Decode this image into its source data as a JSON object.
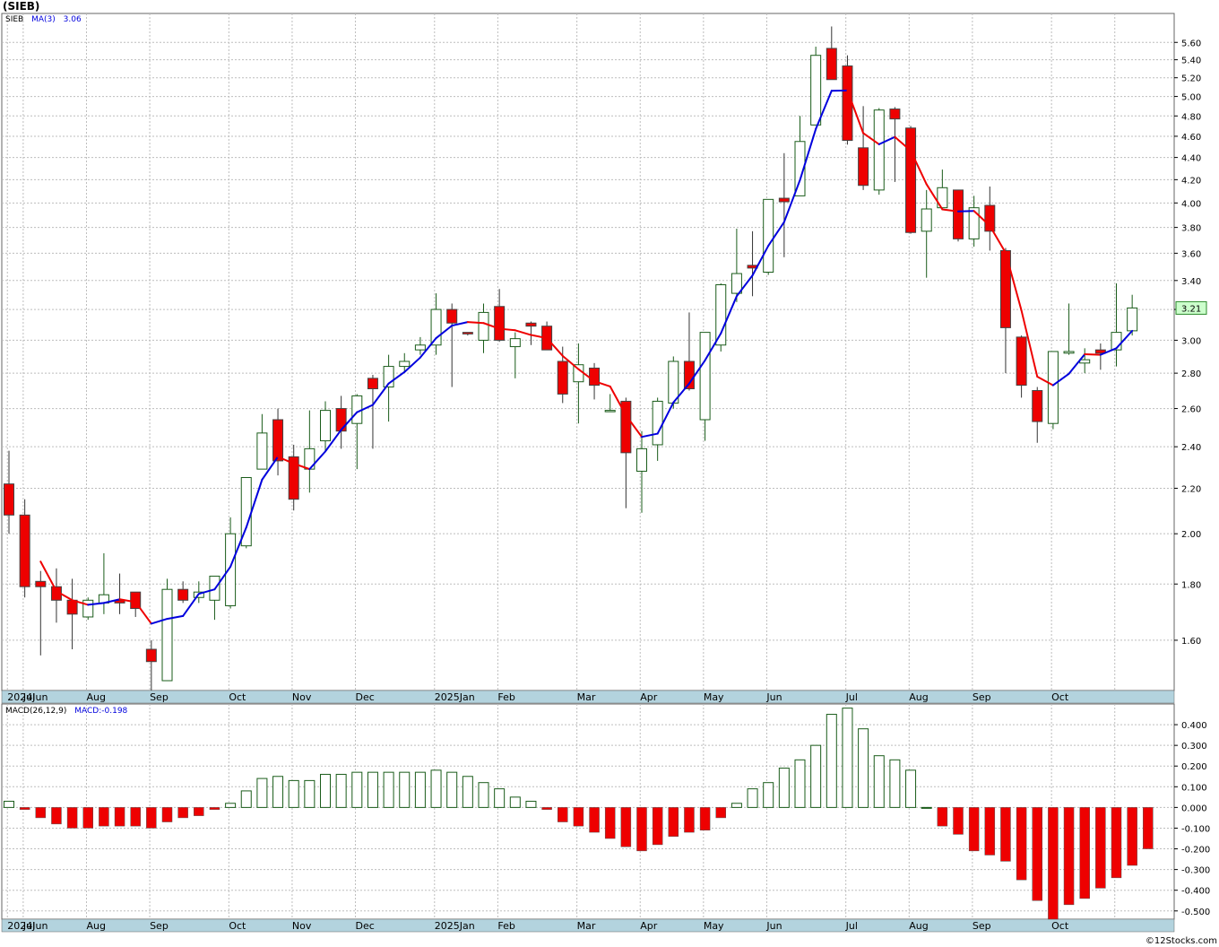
{
  "ticker_title": "(SIEB)",
  "watermark": "©12Stocks.com",
  "colors": {
    "up_candle_fill": "#ffffff",
    "up_candle_stroke": "#1a5c1a",
    "down_candle_fill": "#ee0000",
    "ma_up": "#0000dd",
    "ma_down": "#ee0000",
    "macd_pos_stroke": "#1a5c1a",
    "macd_neg_fill": "#ee0000",
    "grid": "#bdbdbd",
    "axis_band": "#b3d3de",
    "price_tag": "#ccffcc"
  },
  "x_axis_labels": [
    "2024Jun",
    "Jul",
    "Aug",
    "Sep",
    "Oct",
    "Nov",
    "Dec",
    "2025Jan",
    "Feb",
    "Mar",
    "Apr",
    "May",
    "Jun",
    "Jul",
    "Aug",
    "Sep",
    "Oct"
  ],
  "chart_data": [
    {
      "type": "candlestick",
      "title": "(SIEB)",
      "scale": "log",
      "legend": [
        {
          "name": "SIEB"
        },
        {
          "name": "MA(3)",
          "value": "3.06"
        }
      ],
      "y_ticks": [
        "1.60",
        "1.80",
        "2.00",
        "2.20",
        "2.40",
        "2.60",
        "2.80",
        "3.00",
        "3.20",
        "3.40",
        "3.60",
        "3.80",
        "4.00",
        "4.20",
        "4.40",
        "4.60",
        "4.80",
        "5.00",
        "5.20",
        "5.40",
        "5.60"
      ],
      "ylim": [
        1.44,
        5.95
      ],
      "last_price": "3.21",
      "weeks": [
        {
          "d": "2024-05-31",
          "o": 2.22,
          "h": 2.38,
          "l": 2.0,
          "c": 2.08
        },
        {
          "d": "2024-06-07",
          "o": 2.08,
          "h": 2.15,
          "l": 1.75,
          "c": 1.79
        },
        {
          "d": "2024-06-14",
          "o": 1.81,
          "h": 1.85,
          "l": 1.55,
          "c": 1.79
        },
        {
          "d": "2024-06-21",
          "o": 1.79,
          "h": 1.86,
          "l": 1.66,
          "c": 1.74
        },
        {
          "d": "2024-06-28",
          "o": 1.74,
          "h": 1.82,
          "l": 1.57,
          "c": 1.69
        },
        {
          "d": "2024-07-05",
          "o": 1.68,
          "h": 1.75,
          "l": 1.67,
          "c": 1.74
        },
        {
          "d": "2024-07-12",
          "o": 1.73,
          "h": 1.92,
          "l": 1.69,
          "c": 1.76
        },
        {
          "d": "2024-07-19",
          "o": 1.74,
          "h": 1.84,
          "l": 1.69,
          "c": 1.73
        },
        {
          "d": "2024-07-26",
          "o": 1.77,
          "h": 1.77,
          "l": 1.68,
          "c": 1.71
        },
        {
          "d": "2024-08-02",
          "o": 1.57,
          "h": 1.6,
          "l": 1.44,
          "c": 1.53
        },
        {
          "d": "2024-08-09",
          "o": 1.47,
          "h": 1.82,
          "l": 1.47,
          "c": 1.78
        },
        {
          "d": "2024-08-16",
          "o": 1.78,
          "h": 1.81,
          "l": 1.73,
          "c": 1.74
        },
        {
          "d": "2024-08-23",
          "o": 1.75,
          "h": 1.81,
          "l": 1.73,
          "c": 1.77
        },
        {
          "d": "2024-08-30",
          "o": 1.74,
          "h": 1.83,
          "l": 1.67,
          "c": 1.83
        },
        {
          "d": "2024-09-06",
          "o": 1.72,
          "h": 2.07,
          "l": 1.71,
          "c": 2.0
        },
        {
          "d": "2024-09-13",
          "o": 1.95,
          "h": 2.25,
          "l": 1.94,
          "c": 2.25
        },
        {
          "d": "2024-09-20",
          "o": 2.29,
          "h": 2.57,
          "l": 2.29,
          "c": 2.47
        },
        {
          "d": "2024-09-27",
          "o": 2.54,
          "h": 2.6,
          "l": 2.26,
          "c": 2.33
        },
        {
          "d": "2024-10-04",
          "o": 2.35,
          "h": 2.41,
          "l": 2.1,
          "c": 2.15
        },
        {
          "d": "2024-10-11",
          "o": 2.29,
          "h": 2.59,
          "l": 2.18,
          "c": 2.39
        },
        {
          "d": "2024-10-18",
          "o": 2.43,
          "h": 2.64,
          "l": 2.38,
          "c": 2.59
        },
        {
          "d": "2024-10-25",
          "o": 2.6,
          "h": 2.67,
          "l": 2.39,
          "c": 2.48
        },
        {
          "d": "2024-11-01",
          "o": 2.52,
          "h": 2.68,
          "l": 2.29,
          "c": 2.67
        },
        {
          "d": "2024-11-08",
          "o": 2.77,
          "h": 2.79,
          "l": 2.39,
          "c": 2.71
        },
        {
          "d": "2024-11-15",
          "o": 2.72,
          "h": 2.91,
          "l": 2.53,
          "c": 2.84
        },
        {
          "d": "2024-11-22",
          "o": 2.84,
          "h": 2.92,
          "l": 2.81,
          "c": 2.87
        },
        {
          "d": "2024-11-29",
          "o": 2.94,
          "h": 3.02,
          "l": 2.91,
          "c": 2.97
        },
        {
          "d": "2024-12-06",
          "o": 2.97,
          "h": 3.31,
          "l": 2.91,
          "c": 3.2
        },
        {
          "d": "2024-12-13",
          "o": 3.2,
          "h": 3.24,
          "l": 2.72,
          "c": 3.11
        },
        {
          "d": "2024-12-20",
          "o": 3.05,
          "h": 3.05,
          "l": 3.03,
          "c": 3.04
        },
        {
          "d": "2024-12-27",
          "o": 3.0,
          "h": 3.24,
          "l": 2.92,
          "c": 3.18
        },
        {
          "d": "2025-01-03",
          "o": 3.22,
          "h": 3.34,
          "l": 2.99,
          "c": 3.0
        },
        {
          "d": "2025-01-10",
          "o": 2.96,
          "h": 3.05,
          "l": 2.77,
          "c": 3.01
        },
        {
          "d": "2025-01-17",
          "o": 3.11,
          "h": 3.12,
          "l": 2.97,
          "c": 3.09
        },
        {
          "d": "2025-01-24",
          "o": 3.09,
          "h": 3.12,
          "l": 2.95,
          "c": 2.94
        },
        {
          "d": "2025-01-31",
          "o": 2.87,
          "h": 2.96,
          "l": 2.63,
          "c": 2.68
        },
        {
          "d": "2025-02-07",
          "o": 2.75,
          "h": 2.98,
          "l": 2.52,
          "c": 2.85
        },
        {
          "d": "2025-02-14",
          "o": 2.83,
          "h": 2.86,
          "l": 2.65,
          "c": 2.73
        },
        {
          "d": "2025-02-21",
          "o": 2.59,
          "h": 2.68,
          "l": 2.59,
          "c": 2.59
        },
        {
          "d": "2025-02-28",
          "o": 2.64,
          "h": 2.66,
          "l": 2.11,
          "c": 2.37
        },
        {
          "d": "2025-03-07",
          "o": 2.28,
          "h": 2.48,
          "l": 2.09,
          "c": 2.39
        },
        {
          "d": "2025-03-14",
          "o": 2.41,
          "h": 2.66,
          "l": 2.33,
          "c": 2.64
        },
        {
          "d": "2025-03-21",
          "o": 2.63,
          "h": 2.9,
          "l": 2.6,
          "c": 2.87
        },
        {
          "d": "2025-03-28",
          "o": 2.87,
          "h": 3.18,
          "l": 2.7,
          "c": 2.71
        },
        {
          "d": "2025-04-04",
          "o": 2.54,
          "h": 3.04,
          "l": 2.43,
          "c": 3.05
        },
        {
          "d": "2025-04-11",
          "o": 2.97,
          "h": 3.38,
          "l": 2.93,
          "c": 3.37
        },
        {
          "d": "2025-04-18",
          "o": 3.31,
          "h": 3.79,
          "l": 3.25,
          "c": 3.45
        },
        {
          "d": "2025-04-25",
          "o": 3.51,
          "h": 3.77,
          "l": 3.29,
          "c": 3.49
        },
        {
          "d": "2025-05-02",
          "o": 3.46,
          "h": 4.03,
          "l": 3.44,
          "c": 4.03
        },
        {
          "d": "2025-05-09",
          "o": 4.04,
          "h": 4.44,
          "l": 3.57,
          "c": 4.01
        },
        {
          "d": "2025-05-16",
          "o": 4.06,
          "h": 4.8,
          "l": 4.06,
          "c": 4.55
        },
        {
          "d": "2025-05-23",
          "o": 4.71,
          "h": 5.55,
          "l": 4.71,
          "c": 5.45
        },
        {
          "d": "2025-05-30",
          "o": 5.53,
          "h": 5.79,
          "l": 5.18,
          "c": 5.18
        },
        {
          "d": "2025-06-06",
          "o": 5.33,
          "h": 5.45,
          "l": 4.52,
          "c": 4.56
        },
        {
          "d": "2025-06-13",
          "o": 4.49,
          "h": 4.9,
          "l": 4.11,
          "c": 4.15
        },
        {
          "d": "2025-06-20",
          "o": 4.11,
          "h": 4.88,
          "l": 4.07,
          "c": 4.86
        },
        {
          "d": "2025-06-27",
          "o": 4.87,
          "h": 4.89,
          "l": 4.18,
          "c": 4.77
        },
        {
          "d": "2025-07-04",
          "o": 4.68,
          "h": 4.7,
          "l": 3.75,
          "c": 3.76
        },
        {
          "d": "2025-07-11",
          "o": 3.77,
          "h": 4.11,
          "l": 3.42,
          "c": 3.95
        },
        {
          "d": "2025-07-18",
          "o": 3.96,
          "h": 4.29,
          "l": 3.94,
          "c": 4.13
        },
        {
          "d": "2025-07-25",
          "o": 4.11,
          "h": 4.11,
          "l": 3.69,
          "c": 3.71
        },
        {
          "d": "2025-08-01",
          "o": 3.71,
          "h": 4.06,
          "l": 3.65,
          "c": 3.96
        },
        {
          "d": "2025-08-08",
          "o": 3.98,
          "h": 4.14,
          "l": 3.62,
          "c": 3.77
        },
        {
          "d": "2025-08-15",
          "o": 3.62,
          "h": 3.64,
          "l": 2.8,
          "c": 3.08
        },
        {
          "d": "2025-08-22",
          "o": 3.02,
          "h": 3.03,
          "l": 2.66,
          "c": 2.73
        },
        {
          "d": "2025-08-29",
          "o": 2.7,
          "h": 2.72,
          "l": 2.42,
          "c": 2.53
        },
        {
          "d": "2025-09-05",
          "o": 2.52,
          "h": 2.93,
          "l": 2.49,
          "c": 2.93
        },
        {
          "d": "2025-09-12",
          "o": 2.92,
          "h": 3.24,
          "l": 2.91,
          "c": 2.93
        },
        {
          "d": "2025-09-19",
          "o": 2.86,
          "h": 2.95,
          "l": 2.8,
          "c": 2.88
        },
        {
          "d": "2025-09-26",
          "o": 2.94,
          "h": 2.98,
          "l": 2.82,
          "c": 2.92
        },
        {
          "d": "2025-10-03",
          "o": 2.94,
          "h": 3.38,
          "l": 2.84,
          "c": 3.05
        },
        {
          "d": "2025-10-10",
          "o": 3.06,
          "h": 3.3,
          "l": 3.03,
          "c": 3.21
        }
      ]
    },
    {
      "type": "bar",
      "title": "MACD(26,12,9)",
      "legend": [
        {
          "name": "MACD(26,12,9)"
        },
        {
          "name": "MACD",
          "value": "-0.198"
        }
      ],
      "y_ticks": [
        "-0.500",
        "-0.400",
        "-0.300",
        "-0.200",
        "-0.100",
        "0.000",
        "0.100",
        "0.200",
        "0.300",
        "0.400"
      ],
      "ylim": [
        -0.54,
        0.5
      ],
      "values": [
        0.03,
        -0.01,
        -0.05,
        -0.08,
        -0.1,
        -0.1,
        -0.09,
        -0.09,
        -0.09,
        -0.1,
        -0.07,
        -0.05,
        -0.04,
        -0.01,
        0.02,
        0.08,
        0.14,
        0.15,
        0.13,
        0.13,
        0.16,
        0.16,
        0.17,
        0.17,
        0.17,
        0.17,
        0.17,
        0.18,
        0.17,
        0.15,
        0.12,
        0.09,
        0.05,
        0.03,
        -0.01,
        -0.07,
        -0.09,
        -0.12,
        -0.15,
        -0.19,
        -0.21,
        -0.18,
        -0.14,
        -0.12,
        -0.11,
        -0.05,
        0.02,
        0.09,
        0.12,
        0.19,
        0.23,
        0.3,
        0.45,
        0.48,
        0.38,
        0.25,
        0.23,
        0.18,
        0.0,
        -0.09,
        -0.13,
        -0.21,
        -0.23,
        -0.26,
        -0.35,
        -0.45,
        -0.54,
        -0.47,
        -0.44,
        -0.39,
        -0.34,
        -0.28,
        -0.2
      ]
    }
  ]
}
